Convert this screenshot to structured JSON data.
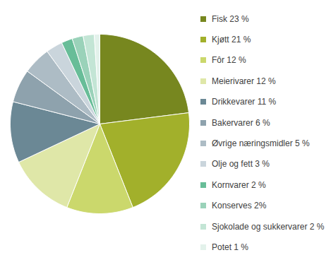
{
  "chart_data": {
    "type": "pie",
    "categories": [
      "Fisk 23 %",
      "Kjøtt 21 %",
      "Fôr 12 %",
      "Meierivarer 12 %",
      "Drikkevarer 11 %",
      "Bakervarer 6 %",
      "Øvrige næringsmidler 5 %",
      "Olje og fett 3 %",
      "Kornvarer 2 %",
      "Konserves 2%",
      "Sjokolade og sukkervarer 2 %",
      "Potet 1 %"
    ],
    "values": [
      23,
      21,
      12,
      12,
      11,
      6,
      5,
      3,
      2,
      2,
      2,
      1
    ],
    "colors": [
      "#77871f",
      "#a2b02b",
      "#cbd86c",
      "#dfe7a8",
      "#6b8895",
      "#8ea2ad",
      "#adbcc5",
      "#cad5dc",
      "#68bd98",
      "#9ad2b9",
      "#c3e5d5",
      "#e3f2eb"
    ],
    "legend": "right"
  }
}
